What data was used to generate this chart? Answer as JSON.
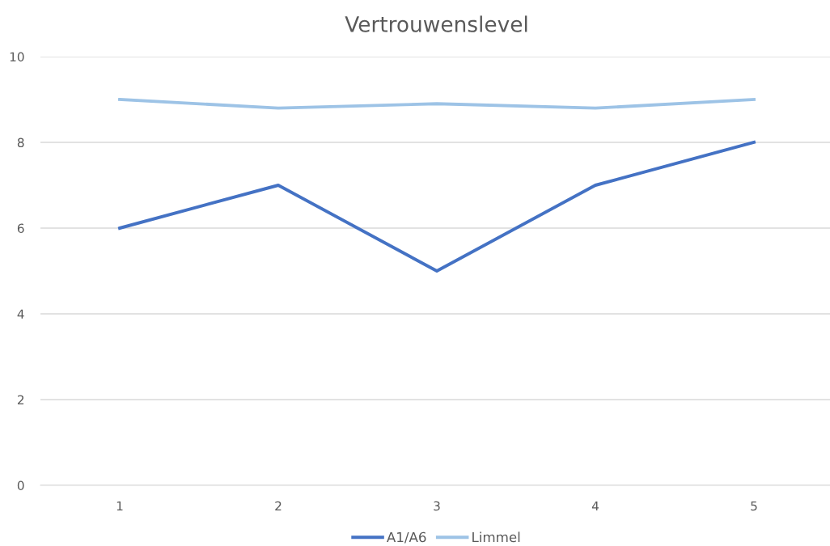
{
  "chart_data": {
    "type": "line",
    "title": "Vertrouwenslevel",
    "categories": [
      "1",
      "2",
      "3",
      "4",
      "5"
    ],
    "series": [
      {
        "name": "A1/A6",
        "color": "#4472c4",
        "values": [
          6,
          7,
          5,
          7,
          8
        ]
      },
      {
        "name": "Limmel",
        "color": "#9dc3e6",
        "values": [
          9.0,
          8.8,
          8.9,
          8.8,
          9.0
        ]
      }
    ],
    "ylim": [
      0,
      10
    ],
    "yticks": [
      0,
      2,
      4,
      6,
      8,
      10
    ],
    "grid": "y",
    "legend": "bottom",
    "marker": "none",
    "line_style": "solid"
  }
}
